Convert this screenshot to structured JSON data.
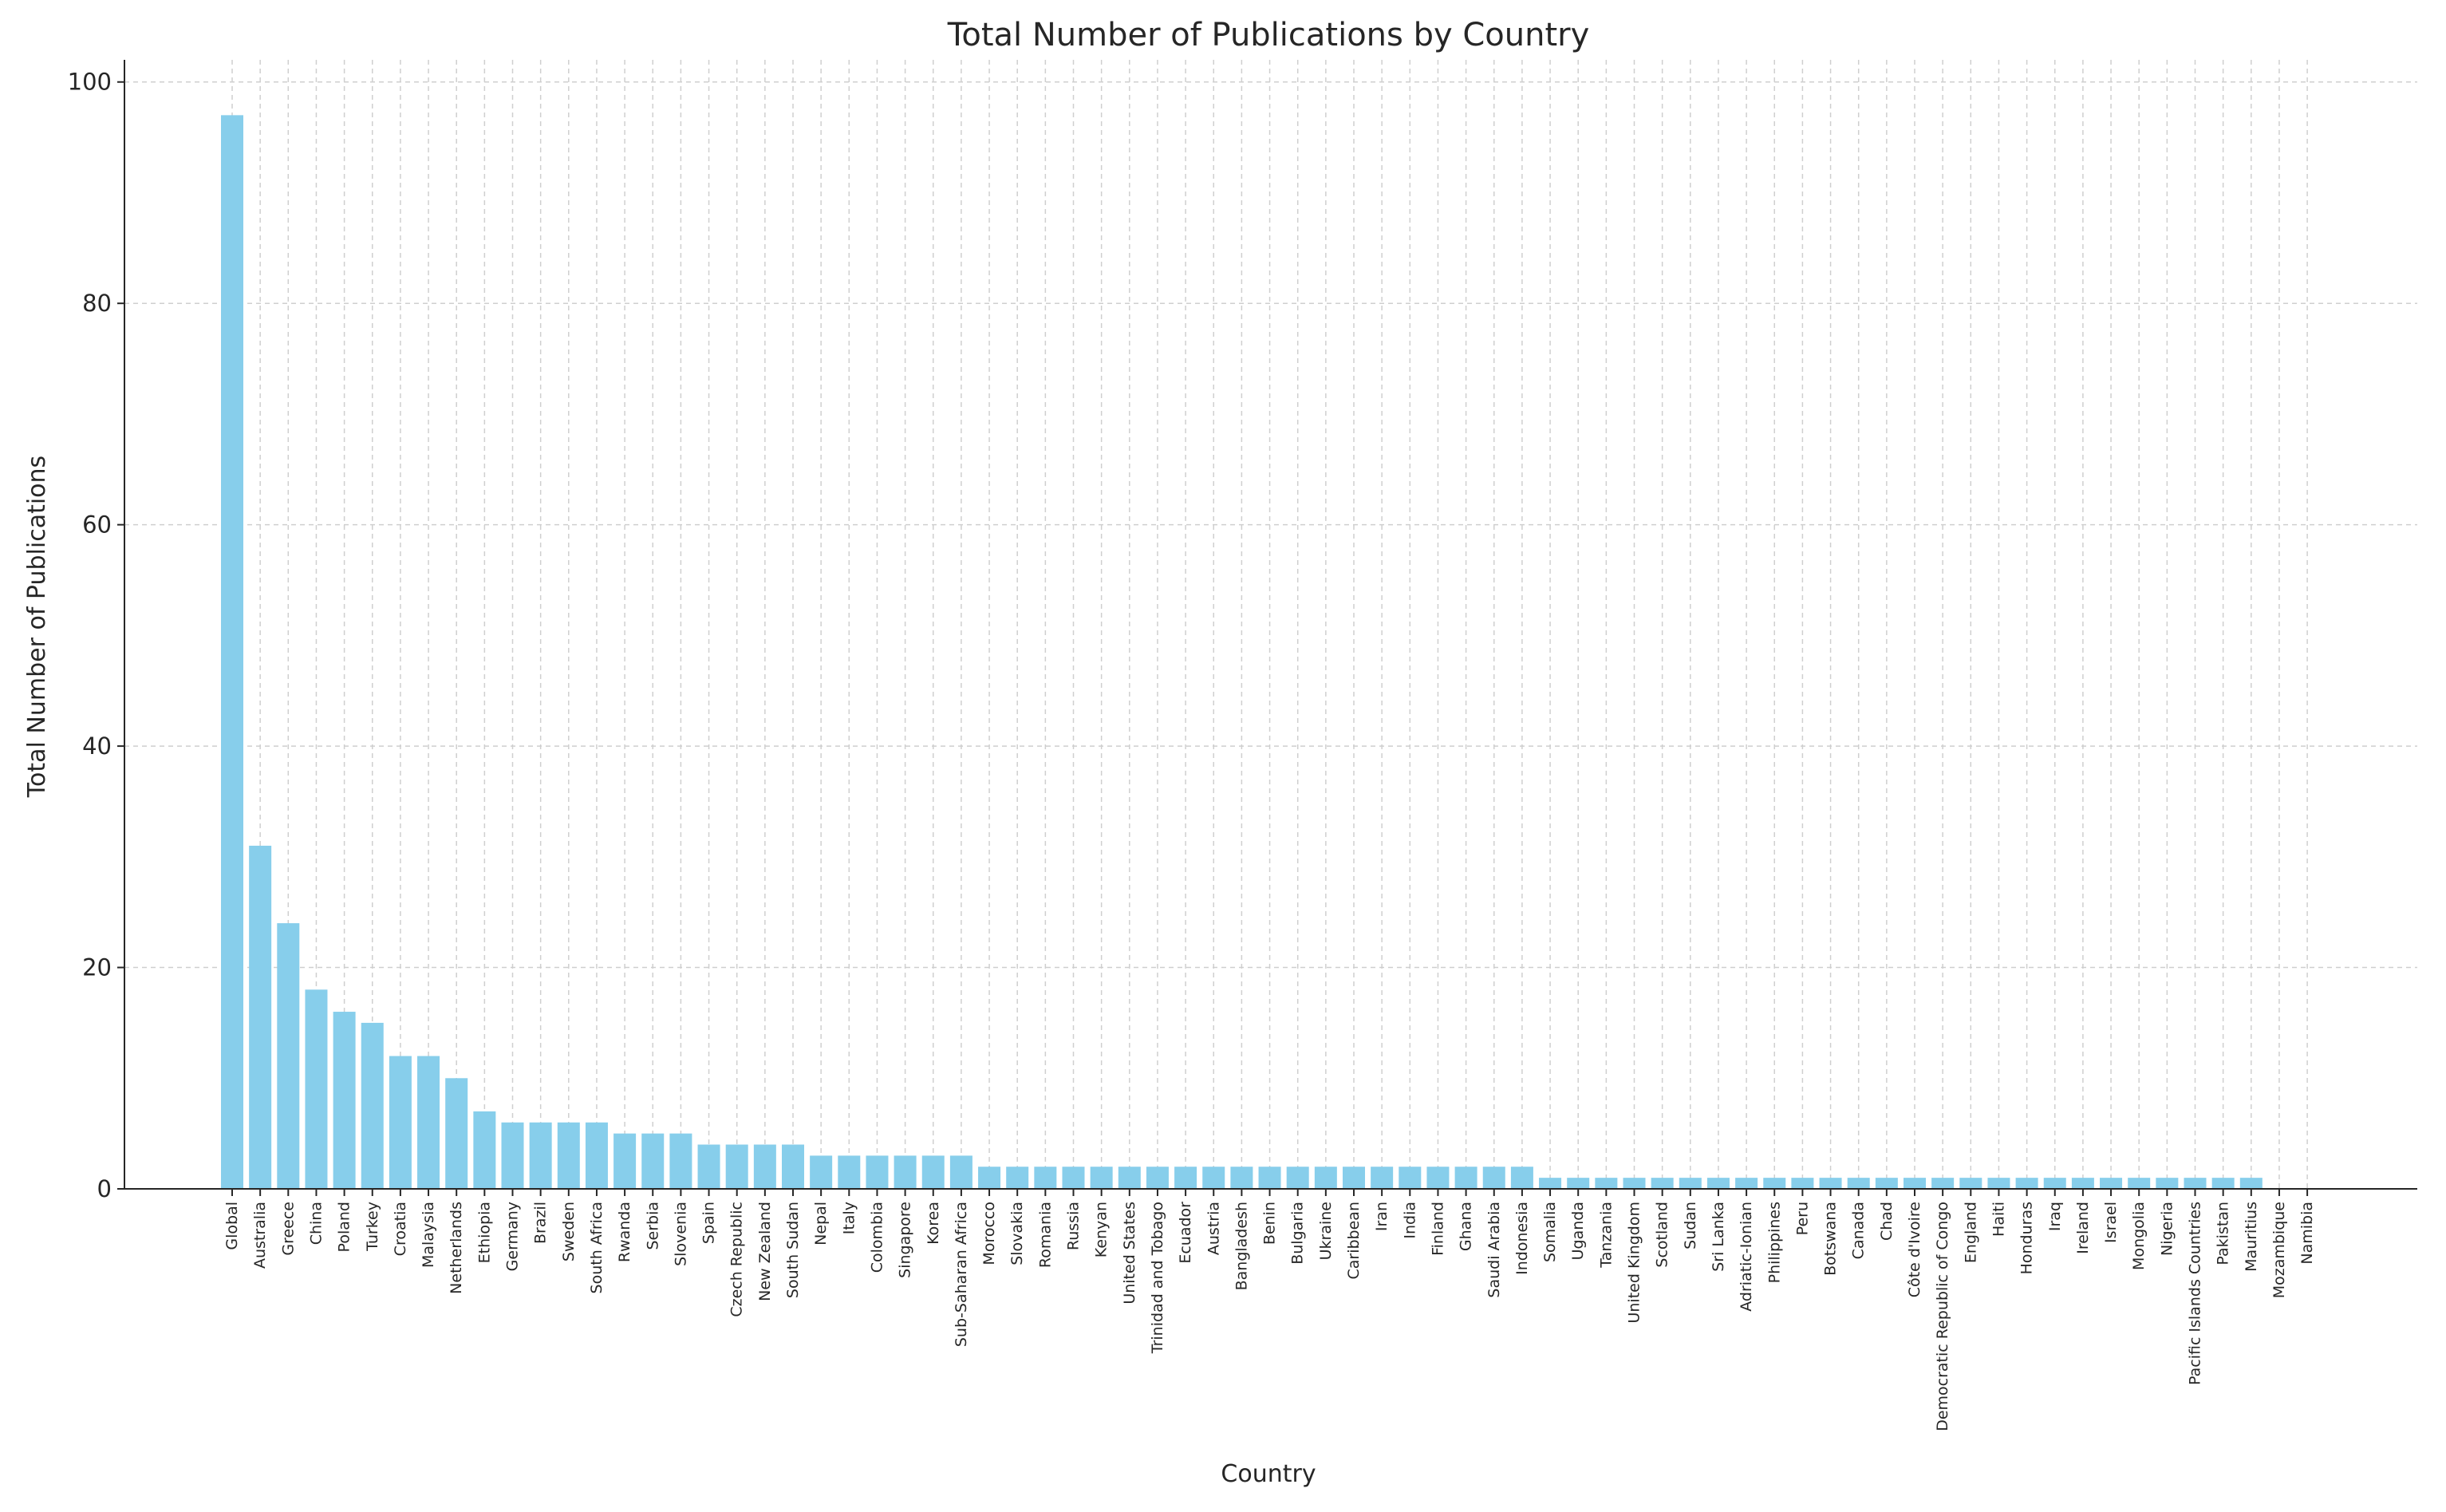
{
  "chart_data": {
    "type": "bar",
    "title": "Total Number of Publications by Country",
    "xlabel": "Country",
    "ylabel": "Total Number of Publications",
    "ylim": [
      0,
      102
    ],
    "yticks": [
      0,
      20,
      40,
      60,
      80,
      100
    ],
    "grid": true,
    "bar_color": "#87ceeb",
    "categories": [
      "Global",
      "Australia",
      "Greece",
      "China",
      "Poland",
      "Turkey",
      "Croatia",
      "Malaysia",
      "Netherlands",
      "Ethiopia",
      "Germany",
      "Brazil",
      "Sweden",
      "South Africa",
      "Rwanda",
      "Serbia",
      "Slovenia",
      "Spain",
      "Czech Republic",
      "New Zealand",
      "South Sudan",
      "Nepal",
      "Italy",
      "Colombia",
      "Singapore",
      "Korea",
      "Sub-Saharan Africa",
      "Morocco",
      "Slovakia",
      "Romania",
      "Russia",
      "Kenyan",
      "United States",
      "Trinidad and Tobago",
      "Ecuador",
      "Austria",
      "Bangladesh",
      "Benin",
      "Bulgaria",
      "Ukraine",
      "Caribbean",
      "Iran",
      "India",
      "Finland",
      "Ghana",
      "Saudi Arabia",
      "Indonesia",
      "Somalia",
      "Uganda",
      "Tanzania",
      "United Kingdom",
      "Scotland",
      "Sudan",
      "Sri Lanka",
      "Adriatic-Ionian",
      "Philippines",
      "Peru",
      "Botswana",
      "Canada",
      "Chad",
      "Côte d'Ivoire",
      "Democratic Republic of Congo",
      "England",
      "Haiti",
      "Honduras",
      "Iraq",
      "Ireland",
      "Israel",
      "Mongolia",
      "Nigeria",
      "Pacific Islands Countries",
      "Pakistan",
      "Mauritius",
      "Mozambique",
      "Namibia"
    ],
    "values": [
      97,
      31,
      24,
      18,
      16,
      15,
      12,
      12,
      10,
      7,
      6,
      6,
      6,
      6,
      5,
      5,
      5,
      4,
      4,
      4,
      4,
      3,
      3,
      3,
      3,
      3,
      3,
      2,
      2,
      2,
      2,
      2,
      2,
      2,
      2,
      2,
      2,
      2,
      2,
      2,
      2,
      2,
      2,
      2,
      2,
      2,
      2,
      1,
      1,
      1,
      1,
      1,
      1,
      1,
      1,
      1,
      1,
      1,
      1,
      1,
      1,
      1,
      1,
      1,
      1,
      1,
      1,
      1,
      1,
      1,
      1,
      1,
      1,
      0,
      0
    ]
  }
}
